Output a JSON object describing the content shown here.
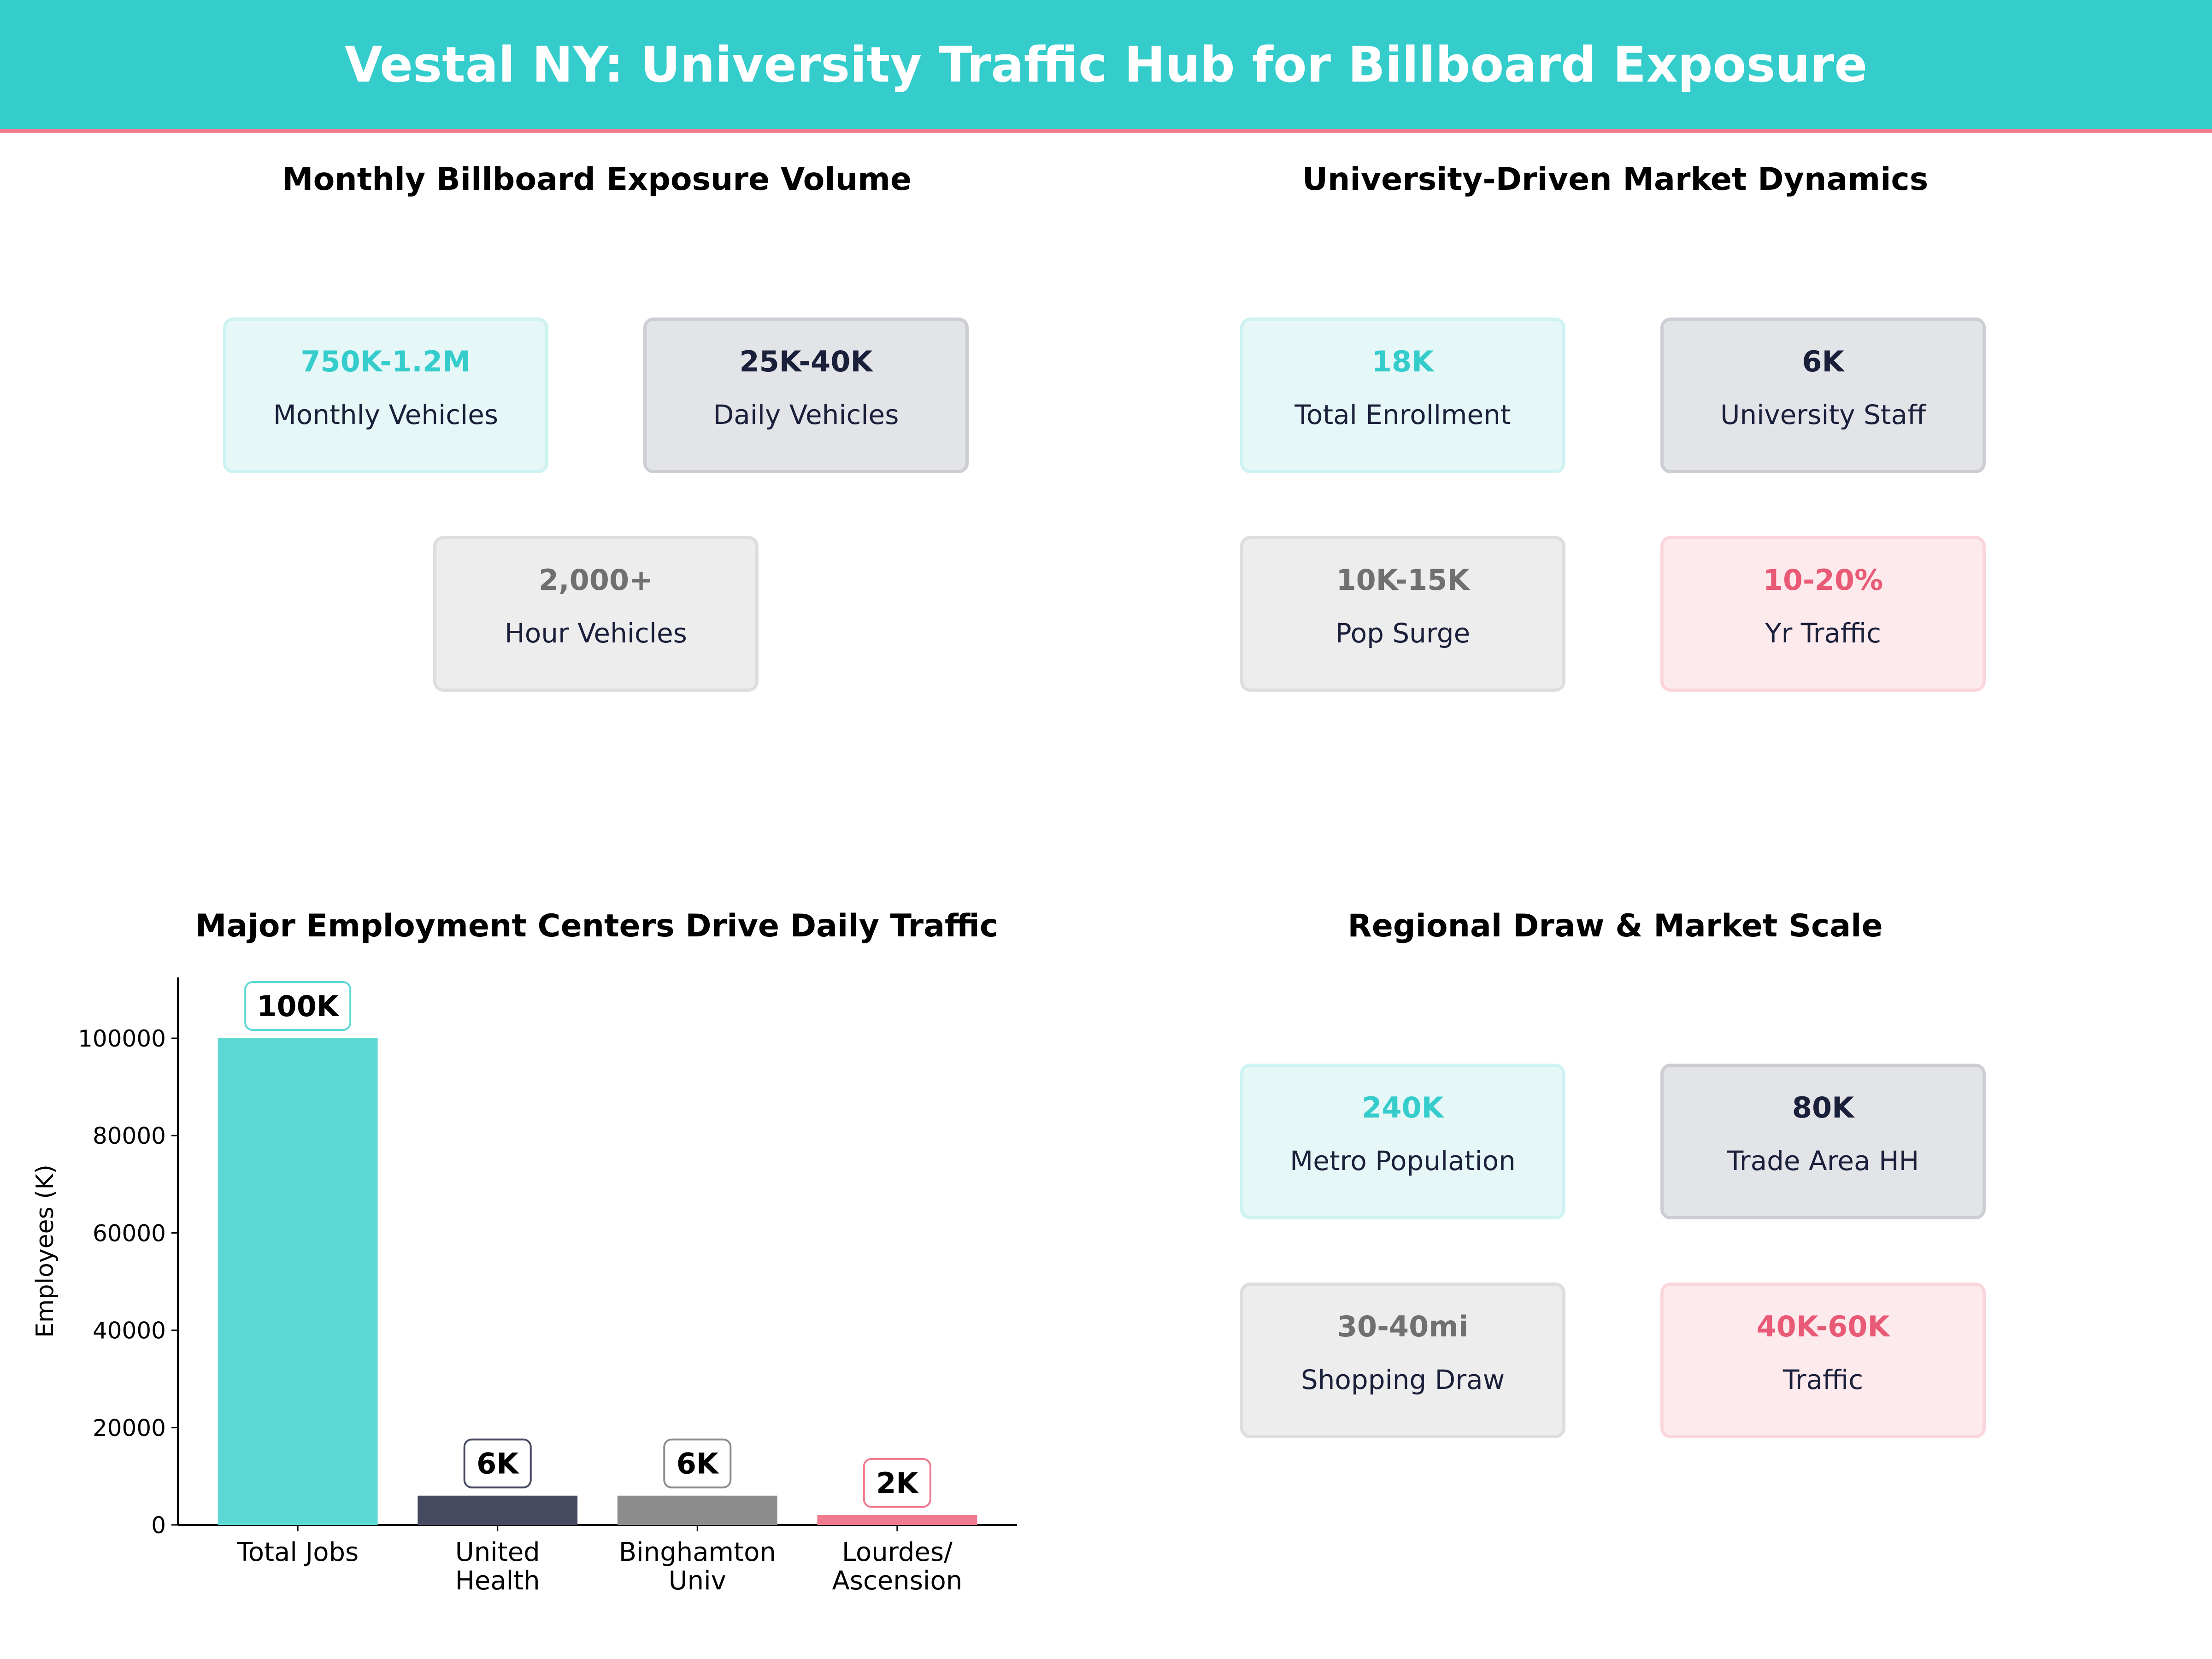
{
  "header": {
    "title": "Vestal NY: University Traffic Hub for Billboard Exposure",
    "color": "#35CCCC",
    "accent": "#F07A8E"
  },
  "panels": [
    {
      "title": "Monthly Billboard Exposure Volume",
      "cards": [
        {
          "value": "750K-1.2M",
          "label": "Monthly Vehicles",
          "style": "teal"
        },
        {
          "value": "25K-40K",
          "label": "Daily Vehicles",
          "style": "navy"
        },
        {
          "value": "2,000+",
          "label": "Hour Vehicles",
          "style": "gray"
        }
      ]
    },
    {
      "title": "University-Driven Market Dynamics",
      "cards": [
        {
          "value": "18K",
          "label": "Total Enrollment",
          "style": "teal"
        },
        {
          "value": "6K",
          "label": "University Staff",
          "style": "navy"
        },
        {
          "value": "10K-15K",
          "label": "Pop Surge",
          "style": "gray"
        },
        {
          "value": "10-20%",
          "label": "Yr Traffic",
          "style": "pink"
        }
      ]
    },
    {
      "title": "Regional Draw & Market Scale",
      "cards": [
        {
          "value": "240K",
          "label": "Metro Population",
          "style": "teal"
        },
        {
          "value": "80K",
          "label": "Trade Area HH",
          "style": "navy"
        },
        {
          "value": "30-40mi",
          "label": "Shopping Draw",
          "style": "gray"
        },
        {
          "value": "40K-60K",
          "label": "Traffic",
          "style": "pink"
        }
      ]
    }
  ],
  "chart_data": {
    "type": "bar",
    "title": "Major Employment Centers Drive Daily Traffic",
    "ylabel": "Employees (K)",
    "xlabel": "",
    "categories": [
      [
        "Total Jobs"
      ],
      [
        "United",
        "Health"
      ],
      [
        "Binghamton",
        "Univ"
      ],
      [
        "Lourdes/",
        "Ascension"
      ]
    ],
    "values": [
      100000,
      6000,
      6000,
      2000
    ],
    "data_labels": [
      "100K",
      "6K",
      "6K",
      "2K"
    ],
    "colors": [
      "#5ED8D4",
      "#464A60",
      "#8C8C8C",
      "#F07A8E"
    ],
    "label_borders": [
      "#5ED8D4",
      "#464A60",
      "#8C8C8C",
      "#F07A8E"
    ],
    "ylim": [
      0,
      112500
    ],
    "yticks": [
      0,
      20000,
      40000,
      60000,
      80000,
      100000
    ],
    "grid": false
  }
}
